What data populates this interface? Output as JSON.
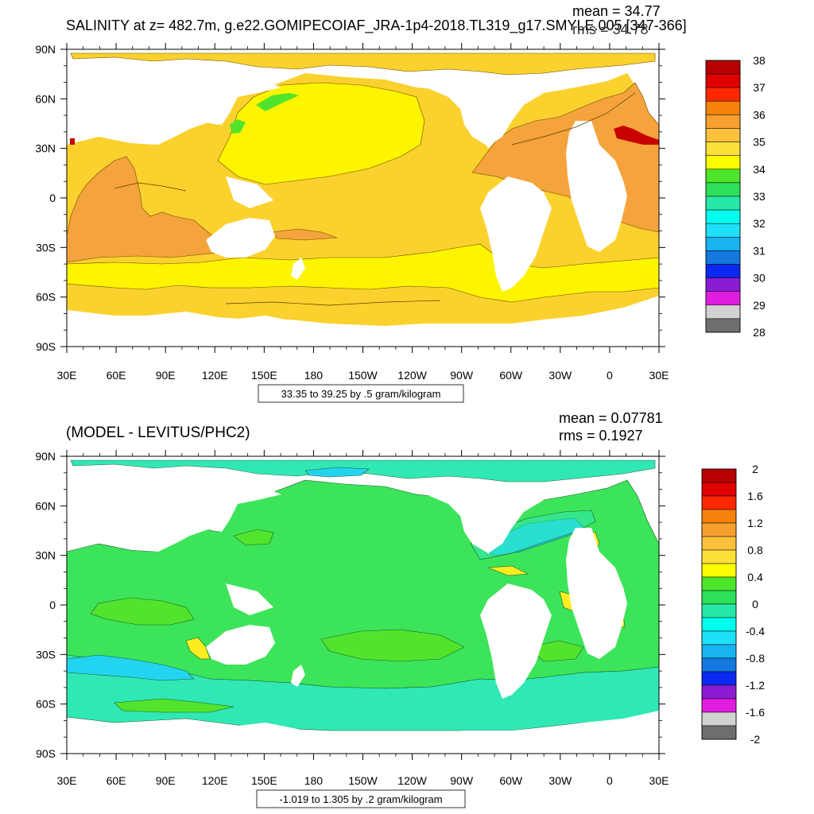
{
  "panels": [
    {
      "title": "SALINITY at z= 482.7m, g.e22.GOMIPECOIAF_JRA-1p4-2018.TL319_g17.SMYLE.005 [347-366]",
      "stats": {
        "mean": "mean = 34.77",
        "rms": "rms = 34.78"
      },
      "info": "33.35 to 39.25 by .5 gram/kilogram",
      "lat_labels": [
        "90N",
        "60N",
        "30N",
        "0",
        "30S",
        "60S",
        "90S"
      ],
      "lon_labels": [
        "30E",
        "60E",
        "90E",
        "120E",
        "150E",
        "180",
        "150W",
        "120W",
        "90W",
        "60W",
        "30W",
        "0",
        "30E"
      ],
      "colorbar": {
        "labels": [
          "38",
          "37",
          "36",
          "35",
          "34",
          "33",
          "32",
          "31",
          "30",
          "29",
          "28"
        ],
        "colors": [
          "#b80000",
          "#e00000",
          "#ff2800",
          "#f5820a",
          "#f7a030",
          "#fbc03c",
          "#fde03a",
          "#fcfc00",
          "#4ee62a",
          "#2ee05a",
          "#28e8a8",
          "#00ffee",
          "#1ee0f8",
          "#18b4f0",
          "#1478e0",
          "#0a28f0",
          "#8b1cd4",
          "#e01ce0",
          "#d2d2d2",
          "#6e6e6e"
        ]
      },
      "map_colors": {
        "base": "#fbd12e",
        "north_atlantic": "#f5a33c",
        "mediterranean": "#c80000",
        "pacific_core": "#fcf400",
        "southern_band": "#fcf400",
        "low_salinity": "#52e42c",
        "land": "#ffffff"
      }
    },
    {
      "title": "(MODEL - LEVITUS/PHC2)",
      "stats": {
        "mean": "mean = 0.07781",
        "rms": "rms = 0.1927"
      },
      "info": "-1.019 to 1.305 by .2 gram/kilogram",
      "lat_labels": [
        "90N",
        "60N",
        "30N",
        "0",
        "30S",
        "60S",
        "90S"
      ],
      "lon_labels": [
        "30E",
        "60E",
        "90E",
        "120E",
        "150E",
        "180",
        "150W",
        "120W",
        "90W",
        "60W",
        "30W",
        "0",
        "30E"
      ],
      "colorbar": {
        "labels": [
          "2",
          "1.6",
          "1.2",
          "0.8",
          "0.4",
          "0",
          "-0.4",
          "-0.8",
          "-1.2",
          "-1.6",
          "-2"
        ],
        "colors": [
          "#b80000",
          "#e00000",
          "#ff2800",
          "#f5820a",
          "#f7a030",
          "#fbc03c",
          "#fde03a",
          "#fcfc00",
          "#4ee62a",
          "#2ee05a",
          "#28e8a8",
          "#00ffee",
          "#1ee0f8",
          "#18b4f0",
          "#1478e0",
          "#0a28f0",
          "#8b1cd4",
          "#e01ce0",
          "#d2d2d2",
          "#6e6e6e"
        ]
      },
      "map_colors": {
        "base": "#3ce45a",
        "southern_ocean": "#30e8b4",
        "north_atlantic_low": "#22d4f0",
        "positive": "#fcec20",
        "land": "#ffffff"
      }
    }
  ]
}
